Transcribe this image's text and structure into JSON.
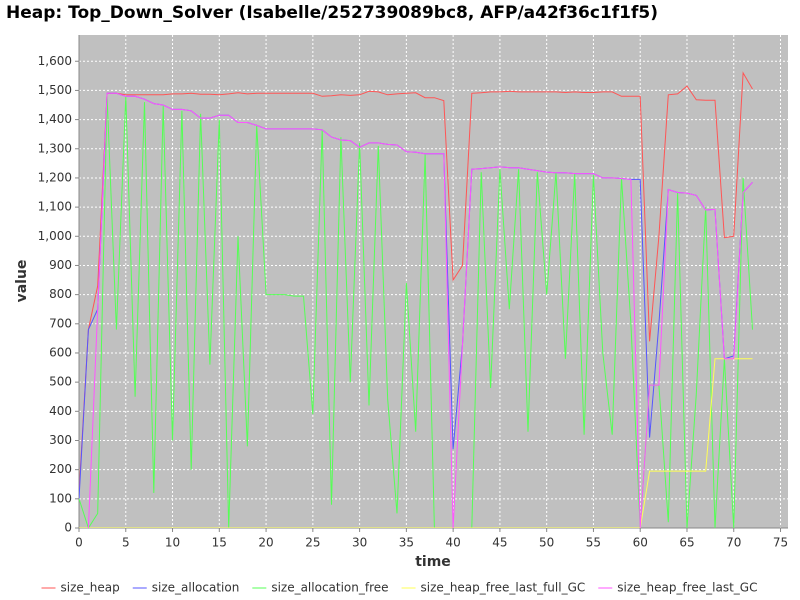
{
  "chart_data": {
    "type": "line",
    "title": "Heap: Top_Down_Solver (Isabelle/252739089bc8, AFP/a42f36c1f1f5)",
    "x_label": "time",
    "y_label": "value",
    "x": [
      0,
      1,
      2,
      3,
      4,
      5,
      6,
      7,
      8,
      9,
      10,
      11,
      12,
      13,
      14,
      15,
      16,
      17,
      18,
      19,
      20,
      21,
      22,
      23,
      24,
      25,
      26,
      27,
      28,
      29,
      30,
      31,
      32,
      33,
      34,
      35,
      36,
      37,
      38,
      39,
      40,
      41,
      42,
      43,
      44,
      45,
      46,
      47,
      48,
      49,
      50,
      51,
      52,
      53,
      54,
      55,
      56,
      57,
      58,
      59,
      60,
      61,
      62,
      63,
      64,
      65,
      66,
      67,
      68,
      69,
      70,
      71,
      72
    ],
    "series": [
      {
        "name": "size_heap",
        "color": "#ff5555",
        "values": [
          120,
          680,
          830,
          1490,
          1490,
          1485,
          1485,
          1485,
          1485,
          1485,
          1488,
          1488,
          1490,
          1487,
          1487,
          1485,
          1488,
          1492,
          1488,
          1490,
          1490,
          1490,
          1490,
          1490,
          1490,
          1490,
          1480,
          1482,
          1485,
          1483,
          1485,
          1497,
          1495,
          1485,
          1488,
          1490,
          1492,
          1475,
          1475,
          1465,
          850,
          900,
          1490,
          1492,
          1495,
          1495,
          1497,
          1495,
          1495,
          1495,
          1495,
          1495,
          1493,
          1495,
          1493,
          1493,
          1495,
          1495,
          1480,
          1480,
          1480,
          640,
          1000,
          1485,
          1488,
          1515,
          1468,
          1466,
          1466,
          995,
          1000,
          1560,
          1505
        ]
      },
      {
        "name": "size_allocation",
        "color": "#5555ff",
        "values": [
          100,
          680,
          750,
          1490,
          1490,
          1480,
          1480,
          1470,
          1455,
          1450,
          1435,
          1435,
          1430,
          1405,
          1405,
          1415,
          1415,
          1390,
          1390,
          1380,
          1368,
          1368,
          1368,
          1368,
          1368,
          1368,
          1365,
          1340,
          1330,
          1328,
          1305,
          1320,
          1320,
          1315,
          1313,
          1290,
          1288,
          1283,
          1283,
          1283,
          270,
          630,
          1230,
          1232,
          1235,
          1238,
          1235,
          1235,
          1230,
          1225,
          1220,
          1218,
          1218,
          1215,
          1215,
          1215,
          1200,
          1200,
          1198,
          1195,
          1195,
          310,
          700,
          1160,
          1150,
          1148,
          1140,
          1090,
          1092,
          580,
          590,
          1150,
          1185
        ]
      },
      {
        "name": "size_allocation_free",
        "color": "#55ff55",
        "values": [
          100,
          0,
          50,
          1480,
          680,
          1480,
          450,
          1460,
          120,
          1450,
          300,
          1430,
          200,
          1420,
          560,
          1400,
          0,
          1000,
          280,
          1380,
          800,
          800,
          800,
          795,
          795,
          390,
          1365,
          80,
          1340,
          500,
          1320,
          420,
          1310,
          440,
          50,
          840,
          330,
          1280,
          0,
          0,
          0,
          0,
          0,
          1220,
          480,
          1230,
          750,
          1230,
          330,
          1220,
          800,
          1220,
          580,
          1215,
          320,
          1210,
          600,
          320,
          1200,
          700,
          0,
          490,
          490,
          20,
          1150,
          0,
          460,
          1100,
          0,
          580,
          0,
          1200,
          680
        ]
      },
      {
        "name": "size_heap_free_last_full_GC",
        "color": "#ffff55",
        "values": [
          0,
          0,
          0,
          0,
          0,
          0,
          0,
          0,
          0,
          0,
          0,
          0,
          0,
          0,
          0,
          0,
          0,
          0,
          0,
          0,
          0,
          0,
          0,
          0,
          0,
          0,
          0,
          0,
          0,
          0,
          0,
          0,
          0,
          0,
          0,
          0,
          0,
          0,
          0,
          0,
          0,
          0,
          0,
          0,
          0,
          0,
          0,
          0,
          0,
          0,
          0,
          0,
          0,
          0,
          0,
          0,
          0,
          0,
          0,
          0,
          0,
          195,
          195,
          195,
          195,
          195,
          195,
          195,
          580,
          580,
          580,
          580,
          580
        ]
      },
      {
        "name": "size_heap_free_last_GC",
        "color": "#ff55ff",
        "values": [
          null,
          0,
          750,
          1490,
          1490,
          1480,
          1480,
          1470,
          1455,
          1450,
          1435,
          1435,
          1430,
          1405,
          1405,
          1415,
          1415,
          1390,
          1390,
          1380,
          1368,
          1368,
          1368,
          1368,
          1368,
          1368,
          1365,
          1340,
          1330,
          1328,
          1305,
          1320,
          1320,
          1315,
          1313,
          1290,
          1288,
          1283,
          1283,
          1283,
          0,
          630,
          1230,
          1232,
          1235,
          1238,
          1235,
          1235,
          1230,
          1225,
          1220,
          1218,
          1218,
          1215,
          1215,
          1215,
          1200,
          1200,
          1198,
          1195,
          0,
          490,
          490,
          1160,
          1150,
          1148,
          1140,
          1090,
          1092,
          580,
          580,
          1150,
          1185
        ]
      }
    ],
    "xlim": [
      0,
      75.8
    ],
    "ylim": [
      0,
      1690
    ],
    "xticks": [
      0,
      5,
      10,
      15,
      20,
      25,
      30,
      35,
      40,
      45,
      50,
      55,
      60,
      65,
      70,
      75
    ],
    "yticks": [
      0,
      100,
      200,
      300,
      400,
      500,
      600,
      700,
      800,
      900,
      {
        "value": 1000,
        "label": "1,000"
      },
      {
        "value": 1100,
        "label": "1,100"
      },
      {
        "value": 1200,
        "label": "1,200"
      },
      {
        "value": 1300,
        "label": "1,300"
      },
      {
        "value": 1400,
        "label": "1,400"
      },
      {
        "value": 1500,
        "label": "1,500"
      },
      {
        "value": 1600,
        "label": "1,600"
      }
    ],
    "grid": true,
    "legend": "bottom"
  }
}
